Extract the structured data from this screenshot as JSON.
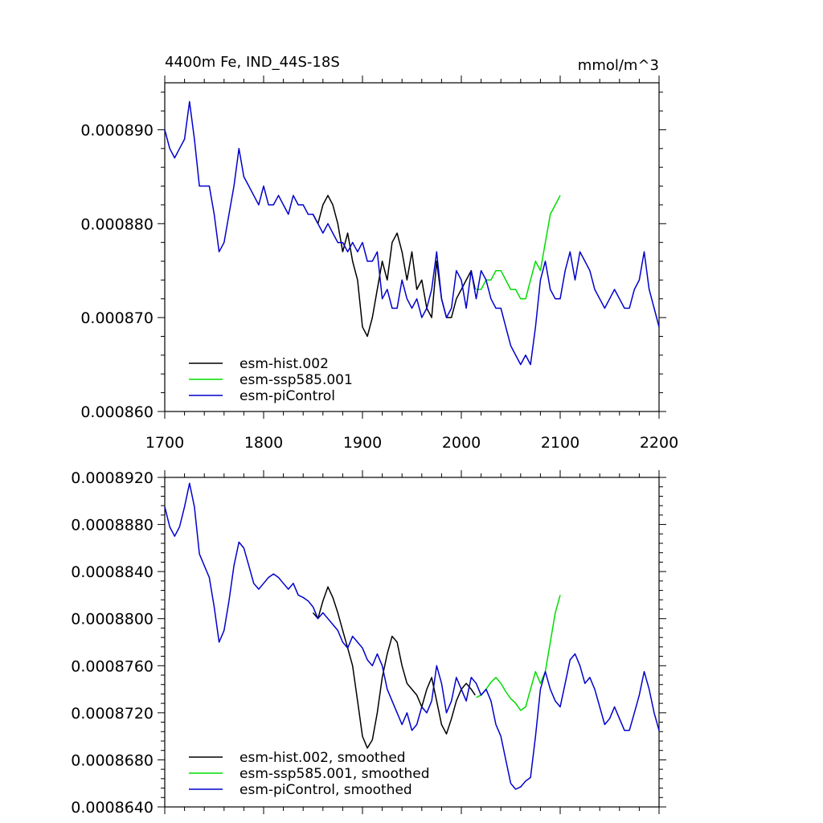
{
  "chart_data": [
    {
      "type": "line",
      "title": "4400m Fe, IND_44S-18S",
      "units": "mmol/m^3",
      "xlabel": "",
      "ylabel": "",
      "xlim": [
        1700,
        2200
      ],
      "ylim": [
        0.00086,
        0.000895
      ],
      "x_ticks": [
        1700,
        1800,
        1900,
        2000,
        2100,
        2200
      ],
      "x_tick_labels": [
        "1700",
        "1800",
        "1900",
        "2000",
        "2100",
        "2200"
      ],
      "y_ticks": [
        0.00086,
        0.00087,
        0.00088,
        0.00089
      ],
      "y_tick_labels": [
        "0.000860",
        "0.000870",
        "0.000880",
        "0.000890"
      ],
      "legend_position": "bottom-left",
      "series": [
        {
          "name": "esm-hist.002",
          "color": "#000000",
          "x": [
            1850,
            1855,
            1860,
            1865,
            1870,
            1875,
            1880,
            1885,
            1890,
            1895,
            1900,
            1905,
            1910,
            1915,
            1920,
            1925,
            1930,
            1935,
            1940,
            1945,
            1950,
            1955,
            1960,
            1965,
            1970,
            1975,
            1980,
            1985,
            1990,
            1995,
            2000,
            2005,
            2010,
            2014
          ],
          "values": [
            0.000881,
            0.00088,
            0.000882,
            0.000883,
            0.000882,
            0.00088,
            0.000877,
            0.000879,
            0.000876,
            0.000874,
            0.000869,
            0.000868,
            0.00087,
            0.000873,
            0.000876,
            0.000874,
            0.000878,
            0.000879,
            0.000877,
            0.000874,
            0.000877,
            0.000873,
            0.000874,
            0.000871,
            0.00087,
            0.000876,
            0.000872,
            0.00087,
            0.00087,
            0.000872,
            0.000873,
            0.000874,
            0.000875,
            0.000873
          ]
        },
        {
          "name": "esm-ssp585.001",
          "color": "#00dd00",
          "x": [
            2015,
            2020,
            2025,
            2030,
            2035,
            2040,
            2045,
            2050,
            2055,
            2060,
            2065,
            2070,
            2075,
            2080,
            2085,
            2090,
            2095,
            2100
          ],
          "values": [
            0.000873,
            0.000873,
            0.000874,
            0.000874,
            0.000875,
            0.000875,
            0.000874,
            0.000873,
            0.000873,
            0.000872,
            0.000872,
            0.000874,
            0.000876,
            0.000875,
            0.000878,
            0.000881,
            0.000882,
            0.000883
          ]
        },
        {
          "name": "esm-piControl",
          "color": "#0000cc",
          "x": [
            1700,
            1705,
            1710,
            1715,
            1720,
            1725,
            1730,
            1735,
            1740,
            1745,
            1750,
            1755,
            1760,
            1765,
            1770,
            1775,
            1780,
            1785,
            1790,
            1795,
            1800,
            1805,
            1810,
            1815,
            1820,
            1825,
            1830,
            1835,
            1840,
            1845,
            1850,
            1855,
            1860,
            1865,
            1870,
            1875,
            1880,
            1885,
            1890,
            1895,
            1900,
            1905,
            1910,
            1915,
            1920,
            1925,
            1930,
            1935,
            1940,
            1945,
            1950,
            1955,
            1960,
            1965,
            1970,
            1975,
            1980,
            1985,
            1990,
            1995,
            2000,
            2005,
            2010,
            2015,
            2020,
            2025,
            2030,
            2035,
            2040,
            2045,
            2050,
            2055,
            2060,
            2065,
            2070,
            2075,
            2080,
            2085,
            2090,
            2095,
            2100,
            2105,
            2110,
            2115,
            2120,
            2125,
            2130,
            2135,
            2140,
            2145,
            2150,
            2155,
            2160,
            2165,
            2170,
            2175,
            2180,
            2185,
            2190,
            2195,
            2200
          ],
          "values": [
            0.00089,
            0.000888,
            0.000887,
            0.000888,
            0.000889,
            0.000893,
            0.000889,
            0.000884,
            0.000884,
            0.000884,
            0.000881,
            0.000877,
            0.000878,
            0.000881,
            0.000884,
            0.000888,
            0.000885,
            0.000884,
            0.000883,
            0.000882,
            0.000884,
            0.000882,
            0.000882,
            0.000883,
            0.000882,
            0.000881,
            0.000883,
            0.000882,
            0.000882,
            0.000881,
            0.000881,
            0.00088,
            0.000879,
            0.00088,
            0.000879,
            0.000878,
            0.000878,
            0.000877,
            0.000878,
            0.000877,
            0.000878,
            0.000876,
            0.000876,
            0.000877,
            0.000872,
            0.000873,
            0.000871,
            0.000871,
            0.000874,
            0.000872,
            0.000871,
            0.000872,
            0.00087,
            0.000871,
            0.000873,
            0.000877,
            0.000872,
            0.00087,
            0.000871,
            0.000875,
            0.000874,
            0.000871,
            0.000875,
            0.000872,
            0.000875,
            0.000874,
            0.000872,
            0.000871,
            0.000871,
            0.000869,
            0.000867,
            0.000866,
            0.000865,
            0.000866,
            0.000865,
            0.000869,
            0.000874,
            0.000876,
            0.000873,
            0.000872,
            0.000872,
            0.000875,
            0.000877,
            0.000874,
            0.000877,
            0.000876,
            0.000875,
            0.000873,
            0.000872,
            0.000871,
            0.000872,
            0.000873,
            0.000872,
            0.000871,
            0.000871,
            0.000873,
            0.000874,
            0.000877,
            0.000873,
            0.000871,
            0.000869
          ]
        }
      ]
    },
    {
      "type": "line",
      "title": "",
      "xlabel": "",
      "ylabel": "",
      "xlim": [
        1700,
        2200
      ],
      "ylim": [
        0.000864,
        0.000892
      ],
      "x_ticks": [
        1700,
        1800,
        1900,
        2000,
        2100,
        2200
      ],
      "x_tick_labels": [],
      "y_ticks": [
        0.000864,
        0.000868,
        0.000872,
        0.000876,
        0.00088,
        0.000884,
        0.000888,
        0.000892
      ],
      "y_tick_labels": [
        "0.0008640",
        "0.0008680",
        "0.0008720",
        "0.0008760",
        "0.0008800",
        "0.0008840",
        "0.0008880",
        "0.0008920"
      ],
      "legend_position": "bottom-left",
      "series": [
        {
          "name": "esm-hist.002, smoothed",
          "color": "#000000",
          "x": [
            1850,
            1855,
            1860,
            1865,
            1870,
            1875,
            1880,
            1885,
            1890,
            1895,
            1900,
            1905,
            1910,
            1915,
            1920,
            1925,
            1930,
            1935,
            1940,
            1945,
            1950,
            1955,
            1960,
            1965,
            1970,
            1975,
            1980,
            1985,
            1990,
            1995,
            2000,
            2005,
            2010,
            2014
          ],
          "values": [
            0.0008805,
            0.00088,
            0.0008815,
            0.0008827,
            0.0008818,
            0.0008805,
            0.000879,
            0.0008775,
            0.000876,
            0.000873,
            0.00087,
            0.000869,
            0.0008697,
            0.000872,
            0.000875,
            0.000877,
            0.0008785,
            0.000878,
            0.000876,
            0.0008745,
            0.000874,
            0.0008735,
            0.0008725,
            0.000874,
            0.000875,
            0.000873,
            0.000871,
            0.0008702,
            0.0008715,
            0.000873,
            0.000874,
            0.0008745,
            0.000874,
            0.0008735
          ]
        },
        {
          "name": "esm-ssp585.001, smoothed",
          "color": "#00dd00",
          "x": [
            2015,
            2020,
            2025,
            2030,
            2035,
            2040,
            2045,
            2050,
            2055,
            2060,
            2065,
            2070,
            2075,
            2080,
            2085,
            2090,
            2095,
            2100
          ],
          "values": [
            0.0008733,
            0.0008735,
            0.000874,
            0.0008746,
            0.000875,
            0.0008745,
            0.0008738,
            0.0008732,
            0.0008728,
            0.0008722,
            0.0008725,
            0.000874,
            0.0008755,
            0.0008745,
            0.0008755,
            0.000878,
            0.0008805,
            0.000882
          ]
        },
        {
          "name": "esm-piControl, smoothed",
          "color": "#0000cc",
          "x": [
            1700,
            1705,
            1710,
            1715,
            1720,
            1725,
            1730,
            1735,
            1740,
            1745,
            1750,
            1755,
            1760,
            1765,
            1770,
            1775,
            1780,
            1785,
            1790,
            1795,
            1800,
            1805,
            1810,
            1815,
            1820,
            1825,
            1830,
            1835,
            1840,
            1845,
            1850,
            1855,
            1860,
            1865,
            1870,
            1875,
            1880,
            1885,
            1890,
            1895,
            1900,
            1905,
            1910,
            1915,
            1920,
            1925,
            1930,
            1935,
            1940,
            1945,
            1950,
            1955,
            1960,
            1965,
            1970,
            1975,
            1980,
            1985,
            1990,
            1995,
            2000,
            2005,
            2010,
            2015,
            2020,
            2025,
            2030,
            2035,
            2040,
            2045,
            2050,
            2055,
            2060,
            2065,
            2070,
            2075,
            2080,
            2085,
            2090,
            2095,
            2100,
            2105,
            2110,
            2115,
            2120,
            2125,
            2130,
            2135,
            2140,
            2145,
            2150,
            2155,
            2160,
            2165,
            2170,
            2175,
            2180,
            2185,
            2190,
            2195,
            2200
          ],
          "values": [
            0.0008895,
            0.0008878,
            0.000887,
            0.0008878,
            0.0008895,
            0.0008915,
            0.0008895,
            0.0008855,
            0.0008845,
            0.0008835,
            0.000881,
            0.000878,
            0.000879,
            0.0008815,
            0.0008845,
            0.0008865,
            0.000886,
            0.0008845,
            0.000883,
            0.0008825,
            0.000883,
            0.0008835,
            0.0008838,
            0.0008835,
            0.000883,
            0.0008825,
            0.000883,
            0.000882,
            0.0008818,
            0.0008815,
            0.000881,
            0.00088,
            0.0008805,
            0.00088,
            0.0008795,
            0.000879,
            0.000878,
            0.0008775,
            0.0008785,
            0.000878,
            0.0008775,
            0.0008765,
            0.000876,
            0.000877,
            0.000876,
            0.000874,
            0.000873,
            0.000872,
            0.000871,
            0.000872,
            0.0008705,
            0.000871,
            0.0008725,
            0.000872,
            0.000873,
            0.000876,
            0.0008745,
            0.000872,
            0.000873,
            0.000875,
            0.000874,
            0.000873,
            0.000875,
            0.0008745,
            0.0008735,
            0.000874,
            0.000873,
            0.000871,
            0.00087,
            0.000868,
            0.000866,
            0.0008655,
            0.0008657,
            0.0008662,
            0.0008665,
            0.00087,
            0.000874,
            0.0008755,
            0.000874,
            0.000873,
            0.0008725,
            0.0008745,
            0.0008765,
            0.000877,
            0.000876,
            0.0008745,
            0.000875,
            0.000874,
            0.0008725,
            0.000871,
            0.0008715,
            0.0008725,
            0.0008715,
            0.0008705,
            0.0008705,
            0.000872,
            0.0008735,
            0.0008755,
            0.000874,
            0.000872,
            0.0008705
          ]
        }
      ]
    }
  ]
}
